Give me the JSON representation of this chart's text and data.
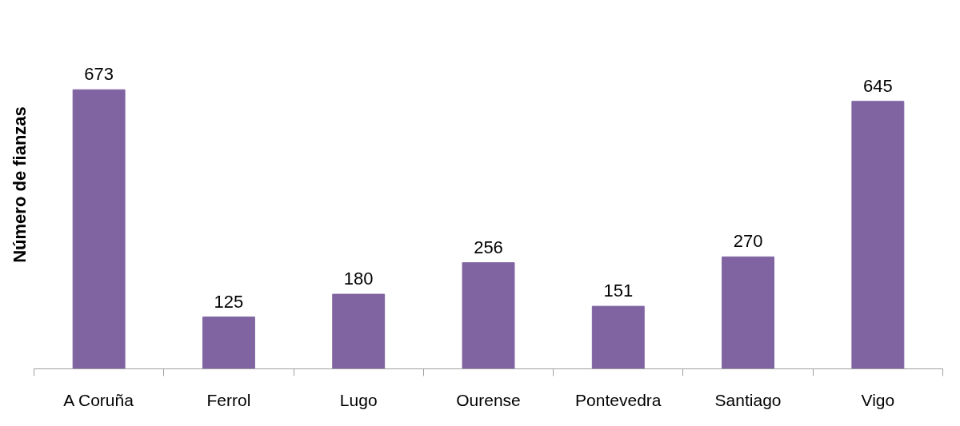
{
  "chart_data": {
    "type": "bar",
    "ylabel": "Número de fianzas",
    "categories": [
      "A Coruña",
      "Ferrol",
      "Lugo",
      "Ourense",
      "Pontevedra",
      "Santiago",
      "Vigo"
    ],
    "values": [
      673,
      125,
      180,
      256,
      151,
      270,
      645
    ],
    "color": "#8064a2",
    "data_labels": true,
    "grid": false
  }
}
